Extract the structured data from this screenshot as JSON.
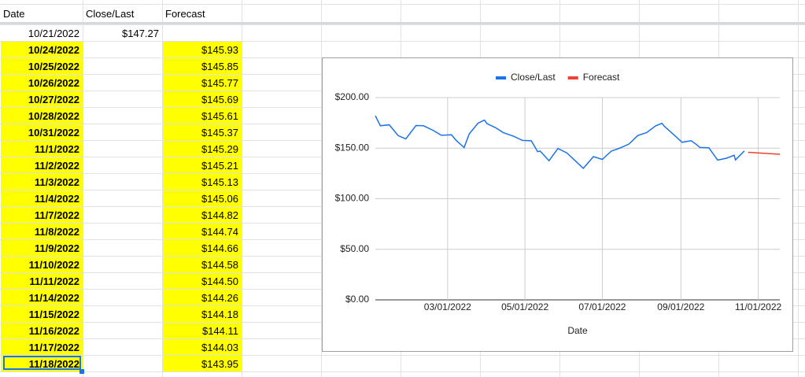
{
  "table": {
    "header": [
      "Date",
      "Close/Last",
      "Forecast"
    ],
    "rows": [
      {
        "date": "10/21/2022",
        "close": "$147.27"
      },
      {
        "date": "10/24/2022",
        "forecast": "$145.93"
      },
      {
        "date": "10/25/2022",
        "forecast": "$145.85"
      },
      {
        "date": "10/26/2022",
        "forecast": "$145.77"
      },
      {
        "date": "10/27/2022",
        "forecast": "$145.69"
      },
      {
        "date": "10/28/2022",
        "forecast": "$145.61"
      },
      {
        "date": "10/31/2022",
        "forecast": "$145.37"
      },
      {
        "date": "11/1/2022",
        "forecast": "$145.29"
      },
      {
        "date": "11/2/2022",
        "forecast": "$145.21"
      },
      {
        "date": "11/3/2022",
        "forecast": "$145.13"
      },
      {
        "date": "11/4/2022",
        "forecast": "$145.06"
      },
      {
        "date": "11/7/2022",
        "forecast": "$144.82"
      },
      {
        "date": "11/8/2022",
        "forecast": "$144.74"
      },
      {
        "date": "11/9/2022",
        "forecast": "$144.66"
      },
      {
        "date": "11/10/2022",
        "forecast": "$144.58"
      },
      {
        "date": "11/11/2022",
        "forecast": "$144.50"
      },
      {
        "date": "11/14/2022",
        "forecast": "$144.26"
      },
      {
        "date": "11/15/2022",
        "forecast": "$144.18"
      },
      {
        "date": "11/16/2022",
        "forecast": "$144.11"
      },
      {
        "date": "11/17/2022",
        "forecast": "$144.03"
      },
      {
        "date": "11/18/2022",
        "forecast": "$143.95"
      }
    ]
  },
  "chart_data": {
    "type": "line",
    "x_label": "Date",
    "legend": "top",
    "xlim": [
      "01/03/2022",
      "11/18/2022"
    ],
    "xticks": [
      "03/01/2022",
      "05/01/2022",
      "07/01/2022",
      "09/01/2022",
      "11/01/2022"
    ],
    "ylim": [
      0,
      200
    ],
    "yticks": [
      {
        "value": 0,
        "label": "$0.00"
      },
      {
        "value": 50,
        "label": "$50.00"
      },
      {
        "value": 100,
        "label": "$100.00"
      },
      {
        "value": 150,
        "label": "$150.00"
      },
      {
        "value": 200,
        "label": "$200.00"
      }
    ],
    "grid": true,
    "series": [
      {
        "name": "Close/Last",
        "color": "#1a73e8",
        "x": [
          "01/03/2022",
          "01/07/2022",
          "01/14/2022",
          "01/21/2022",
          "01/27/2022",
          "02/04/2022",
          "02/10/2022",
          "02/18/2022",
          "02/24/2022",
          "03/04/2022",
          "03/08/2022",
          "03/14/2022",
          "03/18/2022",
          "03/25/2022",
          "03/30/2022",
          "04/01/2022",
          "04/08/2022",
          "04/14/2022",
          "04/22/2022",
          "04/29/2022",
          "05/06/2022",
          "05/11/2022",
          "05/13/2022",
          "05/20/2022",
          "05/27/2022",
          "06/03/2022",
          "06/10/2022",
          "06/16/2022",
          "06/24/2022",
          "07/01/2022",
          "07/08/2022",
          "07/15/2022",
          "07/22/2022",
          "07/29/2022",
          "08/05/2022",
          "08/12/2022",
          "08/17/2022",
          "08/19/2022",
          "08/26/2022",
          "09/02/2022",
          "09/09/2022",
          "09/13/2022",
          "09/16/2022",
          "09/23/2022",
          "09/30/2022",
          "10/07/2022",
          "10/13/2022",
          "10/14/2022",
          "10/21/2022"
        ],
        "values": [
          182.01,
          172.17,
          173.07,
          162.41,
          159.22,
          172.39,
          172.12,
          167.3,
          162.74,
          163.17,
          157.44,
          150.62,
          163.98,
          174.72,
          177.77,
          174.31,
          170.09,
          165.29,
          161.79,
          157.65,
          157.28,
          146.5,
          147.11,
          137.59,
          149.64,
          145.38,
          137.13,
          130.06,
          141.66,
          138.93,
          147.04,
          150.17,
          154.09,
          162.51,
          165.35,
          172.1,
          174.55,
          171.52,
          163.62,
          155.81,
          157.37,
          153.84,
          150.7,
          150.43,
          138.2,
          140.09,
          142.99,
          138.38,
          147.27
        ]
      },
      {
        "name": "Forecast",
        "color": "#ea4335",
        "x": [
          "10/24/2022",
          "10/25/2022",
          "10/26/2022",
          "10/27/2022",
          "10/28/2022",
          "10/31/2022",
          "11/01/2022",
          "11/02/2022",
          "11/03/2022",
          "11/04/2022",
          "11/07/2022",
          "11/08/2022",
          "11/09/2022",
          "11/10/2022",
          "11/11/2022",
          "11/14/2022",
          "11/15/2022",
          "11/16/2022",
          "11/17/2022",
          "11/18/2022"
        ],
        "values": [
          145.93,
          145.85,
          145.77,
          145.69,
          145.61,
          145.37,
          145.29,
          145.21,
          145.13,
          145.06,
          144.82,
          144.74,
          144.66,
          144.58,
          144.5,
          144.26,
          144.18,
          144.11,
          144.03,
          143.95
        ]
      }
    ]
  }
}
